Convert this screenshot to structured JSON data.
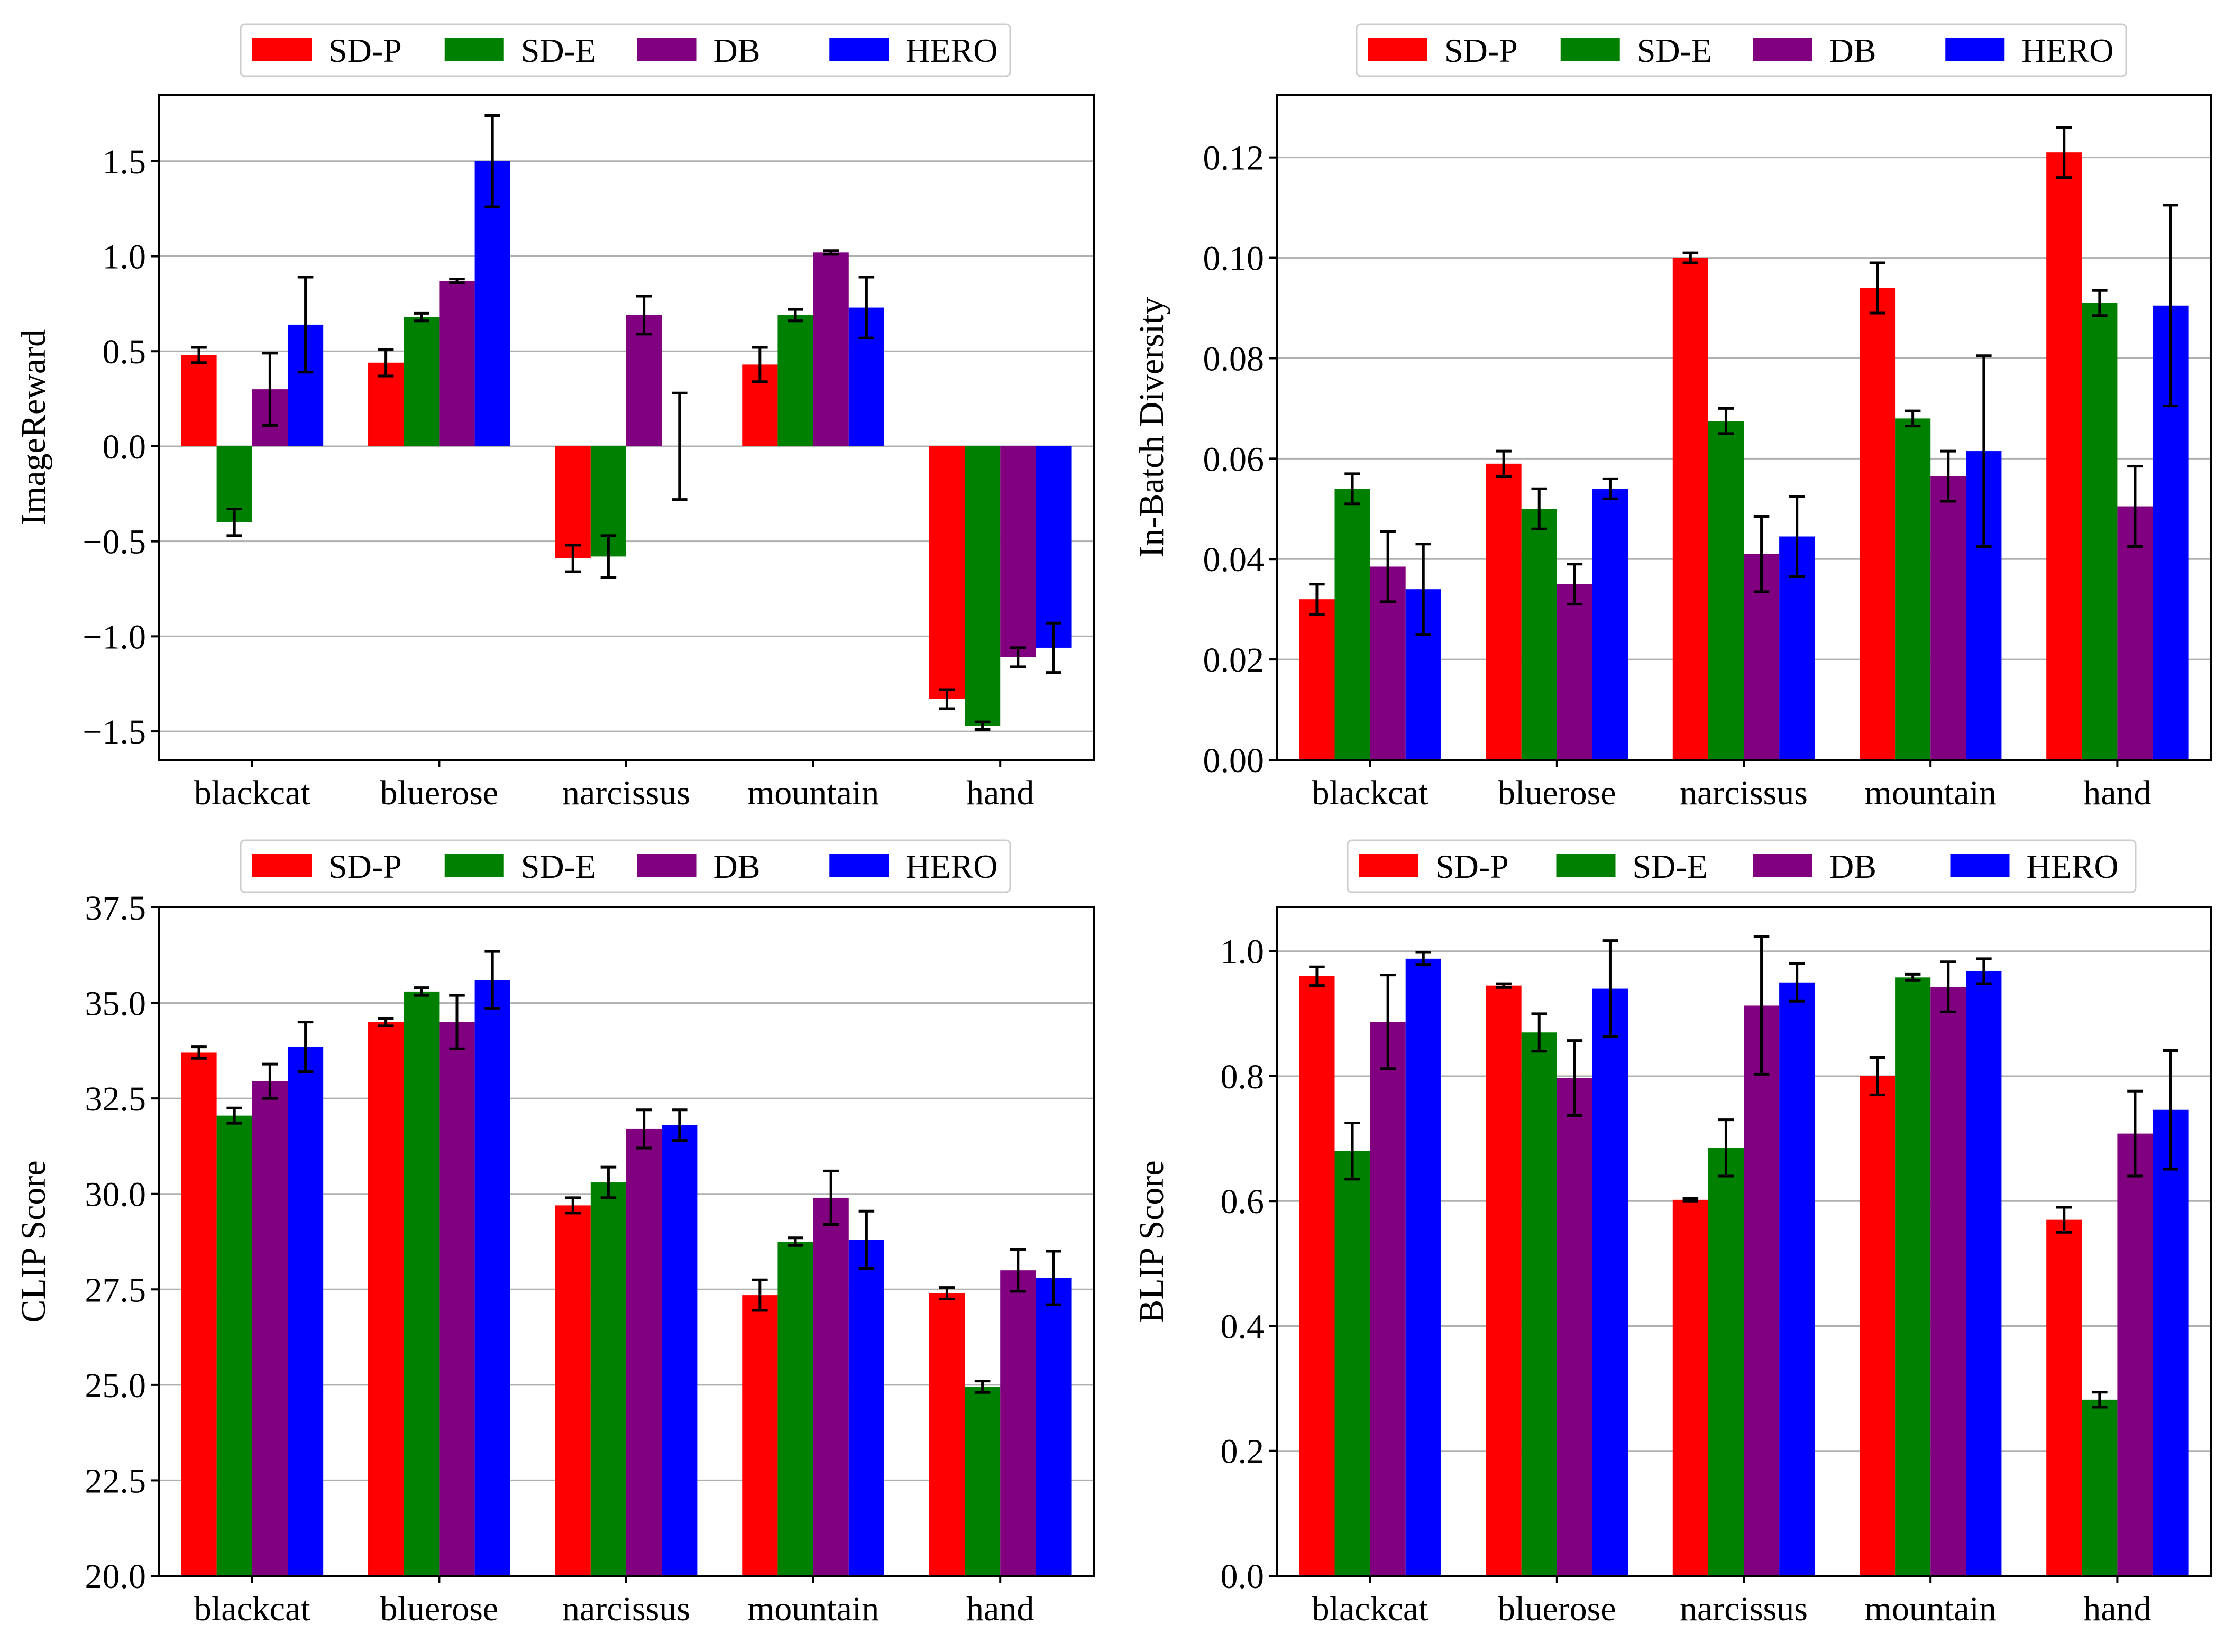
{
  "series_colors": {
    "SD-P": "#ff0000",
    "SD-E": "#008000",
    "DB": "#800080",
    "HERO": "#0000ff"
  },
  "chart_data": [
    {
      "type": "bar",
      "ylabel": "ImageReward",
      "xlabel": "",
      "categories": [
        "blackcat",
        "bluerose",
        "narcissus",
        "mountain",
        "hand"
      ],
      "legend": [
        "SD-P",
        "SD-E",
        "DB",
        "HERO"
      ],
      "legend_position": "top-center",
      "ylim": [
        -1.65,
        1.85
      ],
      "yticks": [
        -1.5,
        -1.0,
        -0.5,
        0.0,
        0.5,
        1.0,
        1.5
      ],
      "ytick_labels": [
        "−1.5",
        "−1.0",
        "−0.5",
        "0.0",
        "0.5",
        "1.0",
        "1.5"
      ],
      "grid": true,
      "series": [
        {
          "name": "SD-P",
          "values": [
            0.48,
            0.44,
            -0.59,
            0.43,
            -1.33
          ],
          "errors": [
            0.04,
            0.07,
            0.07,
            0.09,
            0.05
          ]
        },
        {
          "name": "SD-E",
          "values": [
            -0.4,
            0.68,
            -0.58,
            0.69,
            -1.47
          ],
          "errors": [
            0.07,
            0.02,
            0.11,
            0.03,
            0.02
          ]
        },
        {
          "name": "DB",
          "values": [
            0.3,
            0.87,
            0.69,
            1.02,
            -1.11
          ],
          "errors": [
            0.19,
            0.01,
            0.1,
            0.01,
            0.05
          ]
        },
        {
          "name": "HERO",
          "values": [
            0.64,
            1.5,
            0.0,
            0.73,
            -1.06
          ],
          "errors": [
            0.25,
            0.24,
            0.28,
            0.16,
            0.13
          ]
        }
      ]
    },
    {
      "type": "bar",
      "ylabel": "In-Batch Diversity",
      "xlabel": "",
      "categories": [
        "blackcat",
        "bluerose",
        "narcissus",
        "mountain",
        "hand"
      ],
      "legend": [
        "SD-P",
        "SD-E",
        "DB",
        "HERO"
      ],
      "legend_position": "top-center",
      "ylim": [
        0,
        0.1325
      ],
      "yticks": [
        0.0,
        0.02,
        0.04,
        0.06,
        0.08,
        0.1,
        0.12
      ],
      "ytick_labels": [
        "0.00",
        "0.02",
        "0.04",
        "0.06",
        "0.08",
        "0.10",
        "0.12"
      ],
      "grid": true,
      "series": [
        {
          "name": "SD-P",
          "values": [
            0.032,
            0.059,
            0.1,
            0.094,
            0.121
          ],
          "errors": [
            0.003,
            0.0025,
            0.001,
            0.005,
            0.005
          ]
        },
        {
          "name": "SD-E",
          "values": [
            0.054,
            0.05,
            0.0675,
            0.068,
            0.091
          ],
          "errors": [
            0.003,
            0.004,
            0.0025,
            0.0015,
            0.0025
          ]
        },
        {
          "name": "DB",
          "values": [
            0.0385,
            0.035,
            0.041,
            0.0565,
            0.0505
          ],
          "errors": [
            0.007,
            0.004,
            0.0075,
            0.005,
            0.008
          ]
        },
        {
          "name": "HERO",
          "values": [
            0.034,
            0.054,
            0.0445,
            0.0615,
            0.0905
          ],
          "errors": [
            0.009,
            0.002,
            0.008,
            0.019,
            0.02
          ]
        }
      ]
    },
    {
      "type": "bar",
      "ylabel": "CLIP Score",
      "xlabel": "",
      "categories": [
        "blackcat",
        "bluerose",
        "narcissus",
        "mountain",
        "hand"
      ],
      "legend": [
        "SD-P",
        "SD-E",
        "DB",
        "HERO"
      ],
      "legend_position": "top-center",
      "ylim": [
        20,
        37.5
      ],
      "yticks": [
        20.0,
        22.5,
        25.0,
        27.5,
        30.0,
        32.5,
        35.0,
        37.5
      ],
      "ytick_labels": [
        "20.0",
        "22.5",
        "25.0",
        "27.5",
        "30.0",
        "32.5",
        "35.0",
        "37.5"
      ],
      "grid": true,
      "series": [
        {
          "name": "SD-P",
          "values": [
            33.7,
            34.5,
            29.7,
            27.35,
            27.4
          ],
          "errors": [
            0.15,
            0.1,
            0.2,
            0.4,
            0.15
          ]
        },
        {
          "name": "SD-E",
          "values": [
            32.05,
            35.3,
            30.3,
            28.75,
            24.95
          ],
          "errors": [
            0.2,
            0.1,
            0.4,
            0.1,
            0.15
          ]
        },
        {
          "name": "DB",
          "values": [
            32.95,
            34.5,
            31.7,
            29.9,
            28.0
          ],
          "errors": [
            0.45,
            0.7,
            0.5,
            0.7,
            0.55
          ]
        },
        {
          "name": "HERO",
          "values": [
            33.85,
            35.6,
            31.8,
            28.8,
            27.8
          ],
          "errors": [
            0.65,
            0.75,
            0.4,
            0.75,
            0.7
          ]
        }
      ]
    },
    {
      "type": "bar",
      "ylabel": "BLIP Score",
      "xlabel": "",
      "categories": [
        "blackcat",
        "bluerose",
        "narcissus",
        "mountain",
        "hand"
      ],
      "legend": [
        "SD-P",
        "SD-E",
        "DB",
        "HERO"
      ],
      "legend_position": "top-center",
      "ylim": [
        0,
        1.07
      ],
      "yticks": [
        0.0,
        0.2,
        0.4,
        0.6,
        0.8,
        1.0
      ],
      "ytick_labels": [
        "0.0",
        "0.2",
        "0.4",
        "0.6",
        "0.8",
        "1.0"
      ],
      "grid": true,
      "series": [
        {
          "name": "SD-P",
          "values": [
            0.96,
            0.945,
            0.602,
            0.8,
            0.57
          ],
          "errors": [
            0.015,
            0.003,
            0.002,
            0.03,
            0.02
          ]
        },
        {
          "name": "SD-E",
          "values": [
            0.68,
            0.87,
            0.685,
            0.958,
            0.282
          ],
          "errors": [
            0.045,
            0.03,
            0.045,
            0.005,
            0.012
          ]
        },
        {
          "name": "DB",
          "values": [
            0.887,
            0.797,
            0.913,
            0.943,
            0.708
          ],
          "errors": [
            0.075,
            0.06,
            0.11,
            0.04,
            0.068
          ]
        },
        {
          "name": "HERO",
          "values": [
            0.988,
            0.94,
            0.95,
            0.968,
            0.746
          ],
          "errors": [
            0.01,
            0.077,
            0.03,
            0.02,
            0.095
          ]
        }
      ]
    }
  ]
}
